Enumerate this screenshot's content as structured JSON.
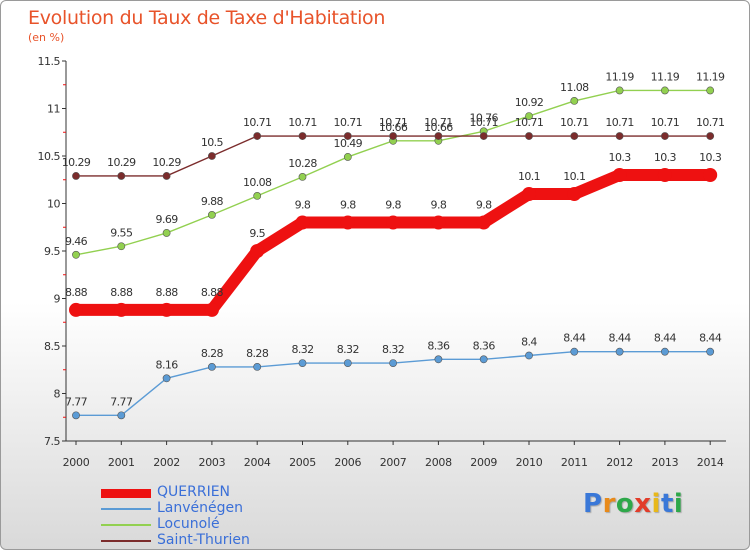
{
  "header": {
    "title": "Evolution du Taux de Taxe d'Habitation",
    "unit": "(en %)"
  },
  "brand": {
    "letters": [
      "P",
      "r",
      "o",
      "x",
      "i",
      "t",
      "i"
    ],
    "colors": [
      "#3a78d8",
      "#e88a1a",
      "#2ea84a",
      "#e23c2a",
      "#e8b81a",
      "#3a78d8",
      "#2ea84a"
    ]
  },
  "chart_data": {
    "type": "line",
    "title": "Evolution du Taux de Taxe d'Habitation",
    "ylabel": "(en %)",
    "xlabel": "",
    "ylim": [
      7.5,
      11.5
    ],
    "yticks": [
      "7.5",
      "8",
      "8.5",
      "9",
      "9.5",
      "10",
      "10.5",
      "11",
      "11.5"
    ],
    "x": [
      "2000",
      "2001",
      "2002",
      "2003",
      "2004",
      "2005",
      "2006",
      "2007",
      "2008",
      "2009",
      "2010",
      "2011",
      "2012",
      "2013",
      "2014"
    ],
    "grid": false,
    "legend_position": "bottom-left",
    "series": [
      {
        "name": "QUERRIEN",
        "color": "#ee1111",
        "emphasis": true,
        "values": [
          8.88,
          8.88,
          8.88,
          8.88,
          9.5,
          9.8,
          9.8,
          9.8,
          9.8,
          9.8,
          10.1,
          10.1,
          10.3,
          10.3,
          10.3
        ],
        "labels": [
          "8.88",
          "8.88",
          "8.88",
          "8.88",
          "9.5",
          "9.8",
          "9.8",
          "9.8",
          "9.8",
          "9.8",
          "10.1",
          "10.1",
          "10.3",
          "10.3",
          "10.3"
        ]
      },
      {
        "name": "Lanvénégen",
        "color": "#5b9bd5",
        "emphasis": false,
        "values": [
          7.77,
          7.77,
          8.16,
          8.28,
          8.28,
          8.32,
          8.32,
          8.32,
          8.36,
          8.36,
          8.4,
          8.44,
          8.44,
          8.44,
          8.44
        ],
        "labels": [
          "7.77",
          "7.77",
          "8.16",
          "8.28",
          "8.28",
          "8.32",
          "8.32",
          "8.32",
          "8.36",
          "8.36",
          "8.4",
          "8.44",
          "8.44",
          "8.44",
          "8.44"
        ]
      },
      {
        "name": "Locunolé",
        "color": "#92d050",
        "emphasis": false,
        "values": [
          9.46,
          9.55,
          9.69,
          9.88,
          10.08,
          10.28,
          10.49,
          10.66,
          10.66,
          10.76,
          10.92,
          11.08,
          11.19,
          11.19,
          11.19
        ],
        "labels": [
          "9.46",
          "9.55",
          "9.69",
          "9.88",
          "10.08",
          "10.28",
          "10.49",
          "10.66",
          "10.66",
          "10.76",
          "10.92",
          "11.08",
          "11.19",
          "11.19",
          "11.19"
        ]
      },
      {
        "name": "Saint-Thurien",
        "color": "#7b2c2c",
        "emphasis": false,
        "values": [
          10.29,
          10.29,
          10.29,
          10.5,
          10.71,
          10.71,
          10.71,
          10.71,
          10.71,
          10.71,
          10.71,
          10.71,
          10.71,
          10.71,
          10.71
        ],
        "labels": [
          "10.29",
          "10.29",
          "10.29",
          "10.5",
          "10.71",
          "10.71",
          "10.71",
          "10.71",
          "10.71",
          "10.71",
          "10.71",
          "10.71",
          "10.71",
          "10.71",
          "10.71"
        ]
      }
    ]
  }
}
